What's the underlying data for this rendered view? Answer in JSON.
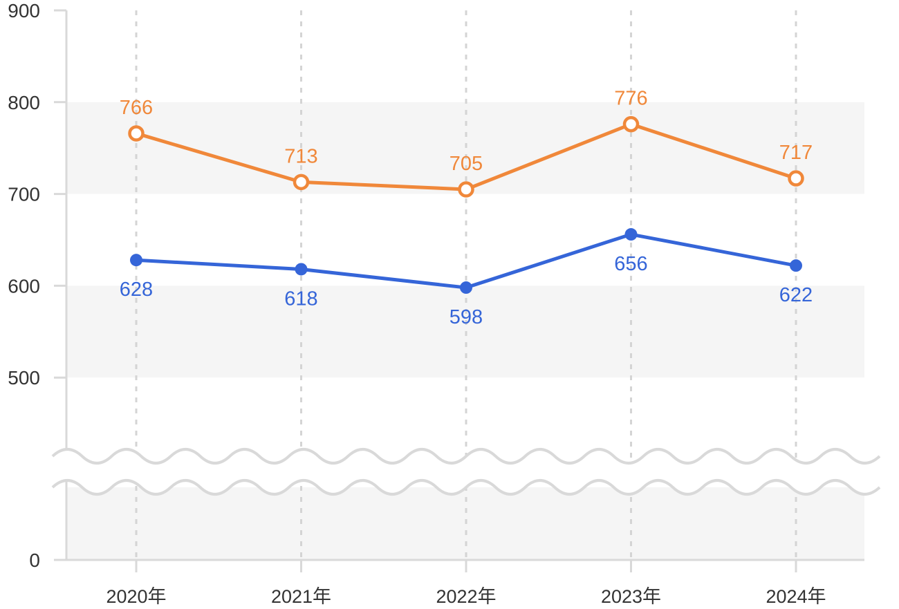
{
  "chart_data": {
    "type": "line",
    "categories": [
      "2020年",
      "2021年",
      "2022年",
      "2023年",
      "2024年"
    ],
    "series": [
      {
        "values": [
          766,
          713,
          705,
          776,
          717
        ],
        "color": "#f0883a",
        "marker": "hollow-circle"
      },
      {
        "values": [
          628,
          618,
          598,
          656,
          622
        ],
        "color": "#3565d8",
        "marker": "filled-circle"
      }
    ],
    "y_ticks": [
      "0",
      "500",
      "600",
      "700",
      "800",
      "900"
    ],
    "ylim": [
      0,
      900
    ],
    "axis_break": [
      0,
      500
    ],
    "grid": "alternating horizontal bands; dashed vertical lines at categories",
    "band_color": "#f5f5f5",
    "axis_color": "#d9d9d9"
  }
}
